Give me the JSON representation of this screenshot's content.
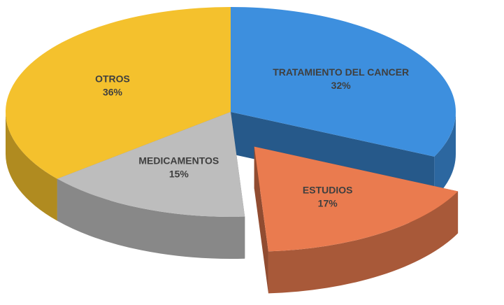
{
  "chart_data": {
    "type": "pie",
    "categories": [
      "TRATAMIENTO DEL CANCER",
      "ESTUDIOS",
      "MEDICAMENTOS",
      "OTROS"
    ],
    "values": [
      32,
      17,
      15,
      36
    ],
    "value_labels": [
      "32%",
      "17%",
      "15%",
      "36%"
    ],
    "colors": [
      "#3d8fde",
      "#ea7b4f",
      "#bdbdbd",
      "#f4c12d"
    ],
    "exploded": [
      false,
      true,
      false,
      false
    ]
  }
}
